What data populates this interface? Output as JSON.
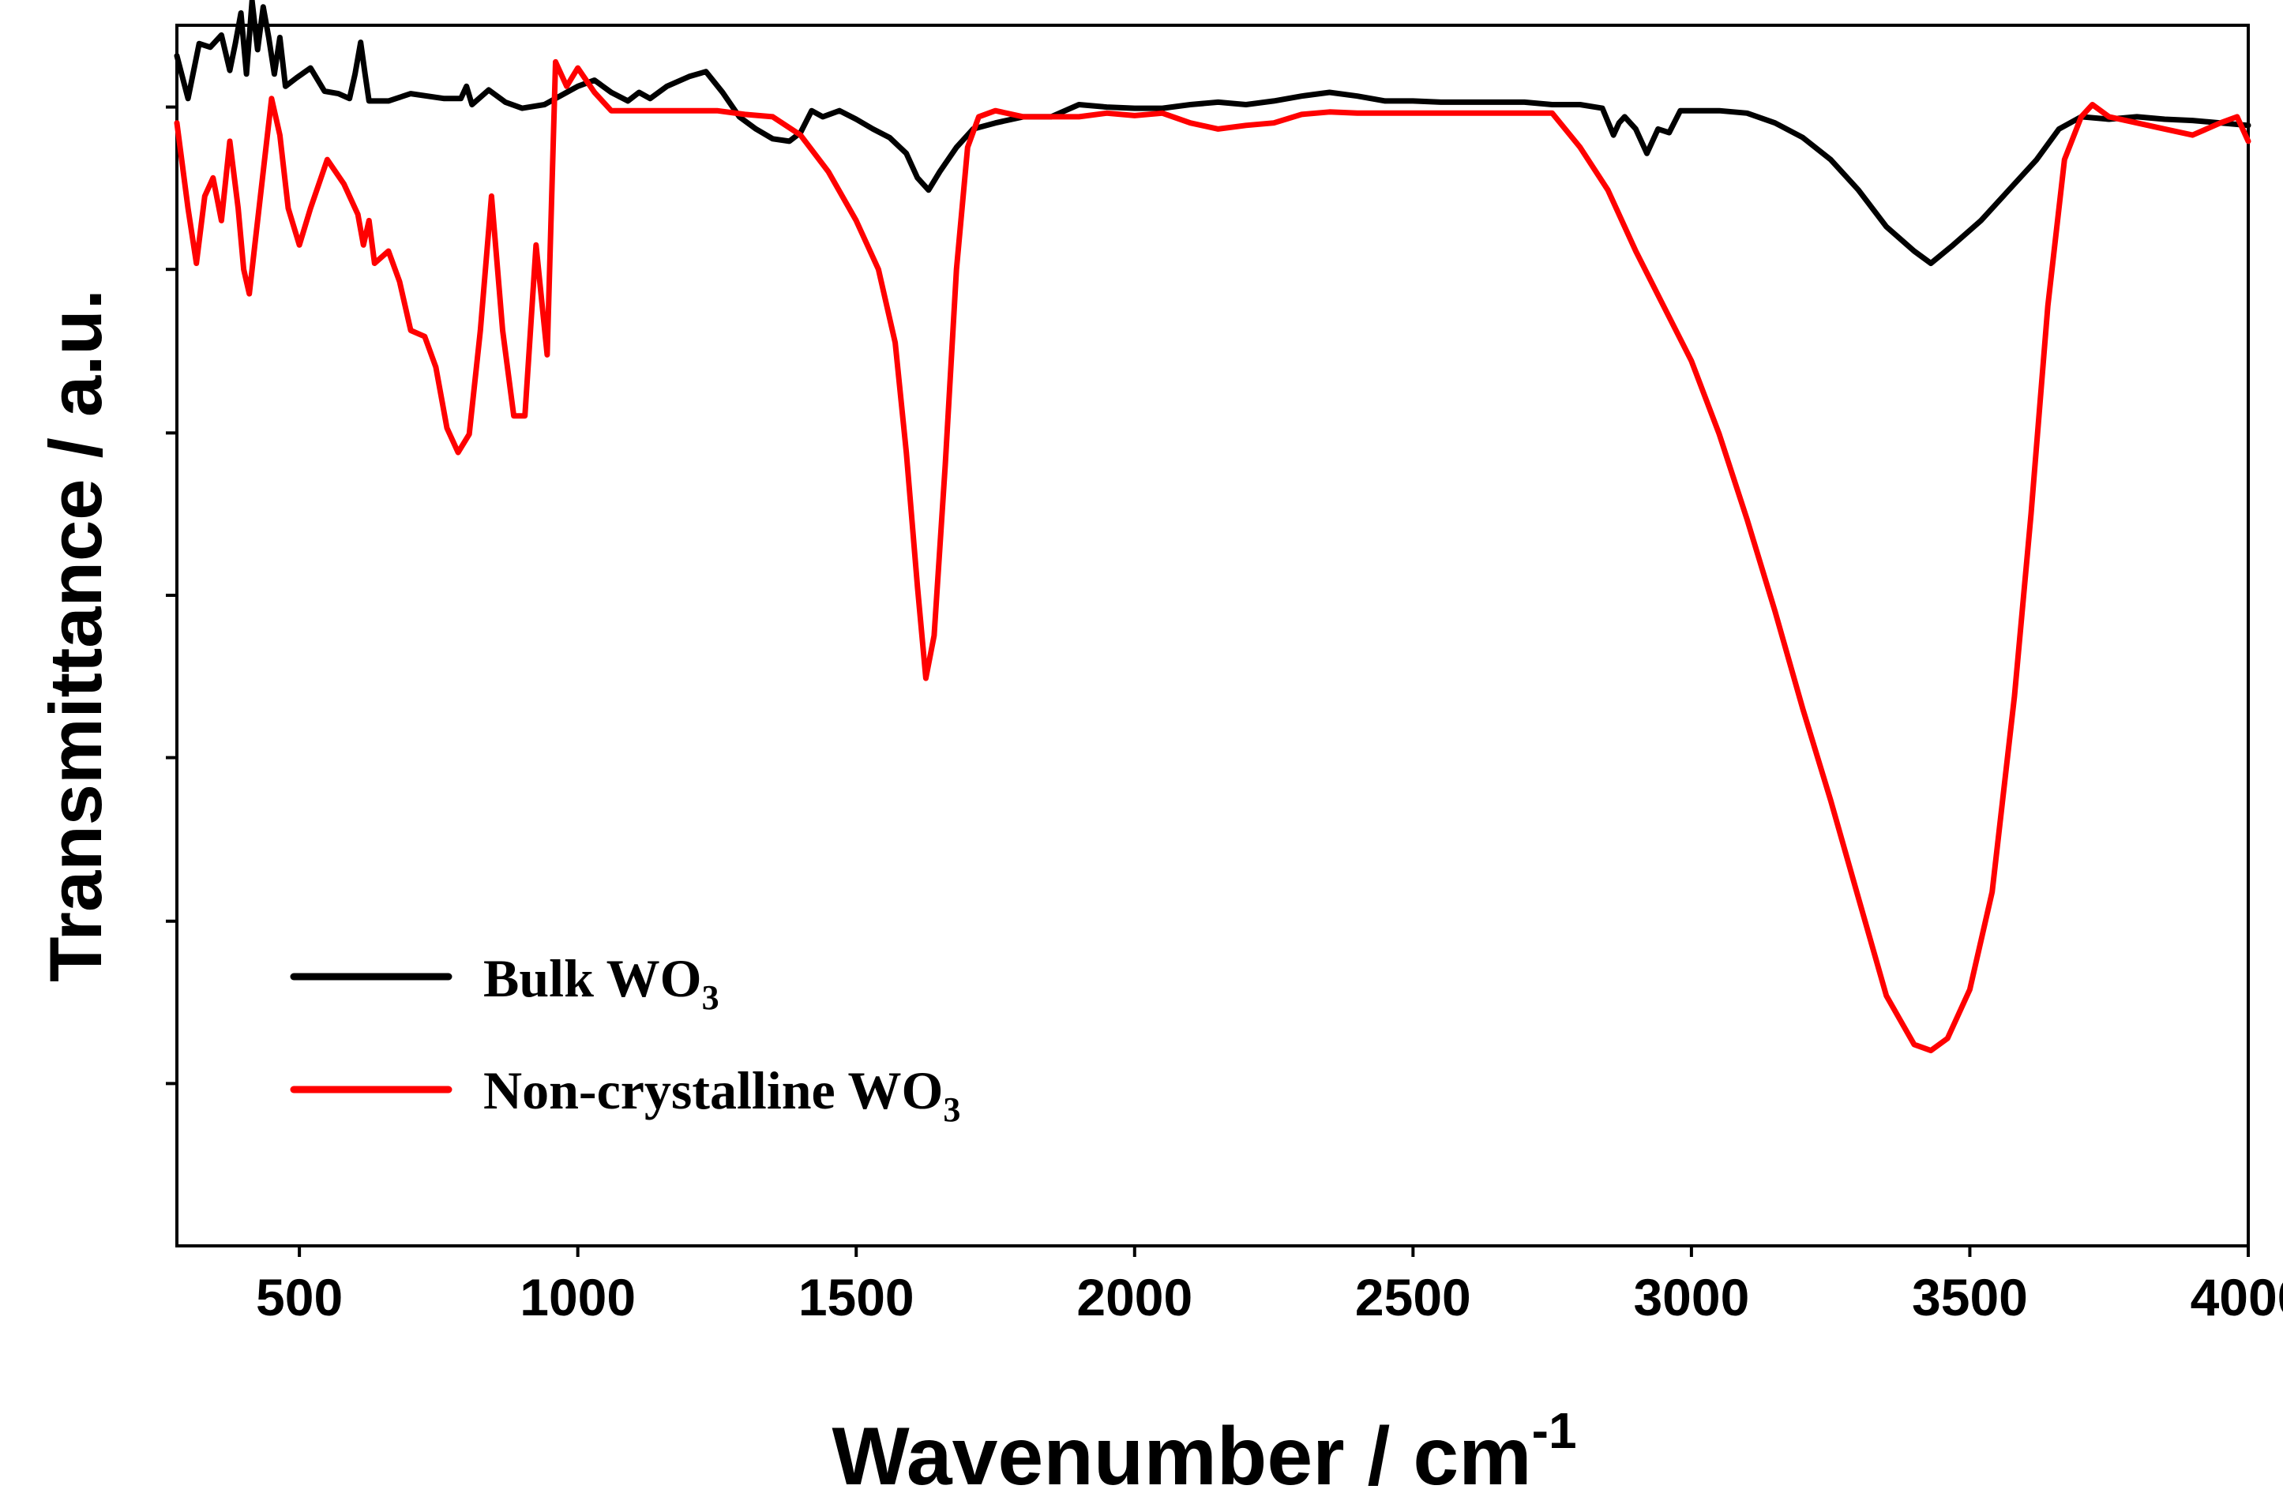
{
  "chart_data": {
    "type": "line",
    "title": "",
    "xlabel": "Wavenumber / cm",
    "xlabel_superscript": "-1",
    "ylabel": "Transmittance / a.u.",
    "xlim": [
      280,
      4000
    ],
    "ylim": [
      0,
      100
    ],
    "x_ticks": [
      500,
      1000,
      1500,
      2000,
      2500,
      3000,
      3500,
      4000
    ],
    "x_tick_labels": [
      "500",
      "1000",
      "1500",
      "2000",
      "2500",
      "3000",
      "3500",
      "4000"
    ],
    "y_ticks": [
      13.3,
      26.6,
      40.0,
      53.3,
      66.6,
      80.0,
      93.3
    ],
    "y_tick_labels_shown": false,
    "grid": false,
    "legend_position": "bottom-left",
    "series": [
      {
        "name": "Bulk WO3",
        "legend_label": "Bulk WO",
        "legend_subscript": "3",
        "color": "#000000",
        "points": [
          [
            280,
            97.5
          ],
          [
            300,
            94.0
          ],
          [
            320,
            98.5
          ],
          [
            340,
            98.2
          ],
          [
            360,
            99.2
          ],
          [
            375,
            96.3
          ],
          [
            385,
            98.5
          ],
          [
            395,
            101.0
          ],
          [
            405,
            96.0
          ],
          [
            415,
            102.0
          ],
          [
            425,
            98.0
          ],
          [
            435,
            101.5
          ],
          [
            445,
            99.0
          ],
          [
            455,
            96.0
          ],
          [
            465,
            99.0
          ],
          [
            475,
            95.0
          ],
          [
            495,
            95.7
          ],
          [
            520,
            96.5
          ],
          [
            545,
            94.6
          ],
          [
            570,
            94.4
          ],
          [
            590,
            94.0
          ],
          [
            600,
            96.0
          ],
          [
            610,
            98.6
          ],
          [
            618,
            96.0
          ],
          [
            625,
            93.8
          ],
          [
            660,
            93.8
          ],
          [
            700,
            94.4
          ],
          [
            760,
            94.0
          ],
          [
            790,
            94.0
          ],
          [
            800,
            95.0
          ],
          [
            810,
            93.5
          ],
          [
            840,
            94.7
          ],
          [
            870,
            93.7
          ],
          [
            900,
            93.2
          ],
          [
            940,
            93.5
          ],
          [
            980,
            94.5
          ],
          [
            1000,
            95.0
          ],
          [
            1030,
            95.5
          ],
          [
            1060,
            94.5
          ],
          [
            1090,
            93.8
          ],
          [
            1110,
            94.5
          ],
          [
            1130,
            94.0
          ],
          [
            1160,
            95.0
          ],
          [
            1200,
            95.8
          ],
          [
            1230,
            96.2
          ],
          [
            1260,
            94.5
          ],
          [
            1290,
            92.5
          ],
          [
            1320,
            91.5
          ],
          [
            1350,
            90.7
          ],
          [
            1380,
            90.5
          ],
          [
            1400,
            91.2
          ],
          [
            1420,
            93.0
          ],
          [
            1440,
            92.5
          ],
          [
            1470,
            93.0
          ],
          [
            1500,
            92.3
          ],
          [
            1530,
            91.5
          ],
          [
            1560,
            90.8
          ],
          [
            1590,
            89.5
          ],
          [
            1610,
            87.5
          ],
          [
            1630,
            86.5
          ],
          [
            1650,
            88.0
          ],
          [
            1680,
            90.0
          ],
          [
            1710,
            91.5
          ],
          [
            1750,
            92.0
          ],
          [
            1800,
            92.5
          ],
          [
            1850,
            92.5
          ],
          [
            1900,
            93.5
          ],
          [
            1950,
            93.3
          ],
          [
            2000,
            93.2
          ],
          [
            2050,
            93.2
          ],
          [
            2100,
            93.5
          ],
          [
            2150,
            93.7
          ],
          [
            2200,
            93.5
          ],
          [
            2250,
            93.8
          ],
          [
            2300,
            94.2
          ],
          [
            2350,
            94.5
          ],
          [
            2400,
            94.2
          ],
          [
            2450,
            93.8
          ],
          [
            2500,
            93.8
          ],
          [
            2550,
            93.7
          ],
          [
            2600,
            93.7
          ],
          [
            2650,
            93.7
          ],
          [
            2700,
            93.7
          ],
          [
            2750,
            93.5
          ],
          [
            2800,
            93.5
          ],
          [
            2840,
            93.2
          ],
          [
            2860,
            91.0
          ],
          [
            2870,
            92.0
          ],
          [
            2880,
            92.5
          ],
          [
            2900,
            91.5
          ],
          [
            2920,
            89.5
          ],
          [
            2940,
            91.5
          ],
          [
            2960,
            91.2
          ],
          [
            2980,
            93.0
          ],
          [
            3050,
            93.0
          ],
          [
            3100,
            92.8
          ],
          [
            3150,
            92.0
          ],
          [
            3200,
            90.8
          ],
          [
            3250,
            89.0
          ],
          [
            3300,
            86.5
          ],
          [
            3350,
            83.5
          ],
          [
            3400,
            81.5
          ],
          [
            3430,
            80.5
          ],
          [
            3470,
            82.0
          ],
          [
            3520,
            84.0
          ],
          [
            3570,
            86.5
          ],
          [
            3620,
            89.0
          ],
          [
            3660,
            91.5
          ],
          [
            3700,
            92.5
          ],
          [
            3750,
            92.3
          ],
          [
            3800,
            92.5
          ],
          [
            3850,
            92.3
          ],
          [
            3900,
            92.2
          ],
          [
            3950,
            92.0
          ],
          [
            4000,
            91.8
          ]
        ]
      },
      {
        "name": "Non-crystalline WO3",
        "legend_label": "Non-crystalline WO",
        "legend_subscript": "3",
        "color": "#ff0000",
        "points": [
          [
            280,
            92.0
          ],
          [
            300,
            85.0
          ],
          [
            315,
            80.5
          ],
          [
            330,
            86.0
          ],
          [
            345,
            87.5
          ],
          [
            360,
            84.0
          ],
          [
            375,
            90.5
          ],
          [
            390,
            85.0
          ],
          [
            400,
            80.0
          ],
          [
            410,
            78.0
          ],
          [
            420,
            82.0
          ],
          [
            435,
            88.0
          ],
          [
            450,
            94.0
          ],
          [
            465,
            91.0
          ],
          [
            480,
            85.0
          ],
          [
            500,
            82.0
          ],
          [
            520,
            85.0
          ],
          [
            550,
            89.0
          ],
          [
            580,
            87.0
          ],
          [
            605,
            84.5
          ],
          [
            615,
            82.0
          ],
          [
            625,
            84.0
          ],
          [
            635,
            80.5
          ],
          [
            660,
            81.5
          ],
          [
            680,
            79.0
          ],
          [
            700,
            75.0
          ],
          [
            725,
            74.5
          ],
          [
            745,
            72.0
          ],
          [
            765,
            67.0
          ],
          [
            785,
            65.0
          ],
          [
            805,
            66.5
          ],
          [
            825,
            75.0
          ],
          [
            845,
            86.0
          ],
          [
            865,
            75.0
          ],
          [
            885,
            68.0
          ],
          [
            905,
            68.0
          ],
          [
            925,
            82.0
          ],
          [
            945,
            73.0
          ],
          [
            960,
            97.0
          ],
          [
            980,
            95.0
          ],
          [
            1000,
            96.5
          ],
          [
            1030,
            94.5
          ],
          [
            1060,
            93.0
          ],
          [
            1100,
            93.0
          ],
          [
            1150,
            93.0
          ],
          [
            1200,
            93.0
          ],
          [
            1250,
            93.0
          ],
          [
            1300,
            92.7
          ],
          [
            1350,
            92.5
          ],
          [
            1400,
            91.0
          ],
          [
            1450,
            88.0
          ],
          [
            1500,
            84.0
          ],
          [
            1540,
            80.0
          ],
          [
            1570,
            74.0
          ],
          [
            1590,
            65.0
          ],
          [
            1610,
            54.0
          ],
          [
            1625,
            46.5
          ],
          [
            1640,
            50.0
          ],
          [
            1660,
            64.0
          ],
          [
            1680,
            80.0
          ],
          [
            1700,
            90.0
          ],
          [
            1720,
            92.5
          ],
          [
            1750,
            93.0
          ],
          [
            1800,
            92.5
          ],
          [
            1850,
            92.5
          ],
          [
            1900,
            92.5
          ],
          [
            1950,
            92.8
          ],
          [
            2000,
            92.6
          ],
          [
            2050,
            92.8
          ],
          [
            2100,
            92.0
          ],
          [
            2150,
            91.5
          ],
          [
            2200,
            91.8
          ],
          [
            2250,
            92.0
          ],
          [
            2300,
            92.7
          ],
          [
            2350,
            92.9
          ],
          [
            2400,
            92.8
          ],
          [
            2450,
            92.8
          ],
          [
            2500,
            92.8
          ],
          [
            2550,
            92.8
          ],
          [
            2600,
            92.8
          ],
          [
            2650,
            92.8
          ],
          [
            2700,
            92.8
          ],
          [
            2750,
            92.8
          ],
          [
            2800,
            90.0
          ],
          [
            2850,
            86.5
          ],
          [
            2900,
            81.5
          ],
          [
            2950,
            77.0
          ],
          [
            3000,
            72.5
          ],
          [
            3050,
            66.5
          ],
          [
            3100,
            59.5
          ],
          [
            3150,
            52.0
          ],
          [
            3200,
            44.0
          ],
          [
            3250,
            36.5
          ],
          [
            3300,
            28.5
          ],
          [
            3350,
            20.5
          ],
          [
            3400,
            16.5
          ],
          [
            3430,
            16.0
          ],
          [
            3460,
            17.0
          ],
          [
            3500,
            21.0
          ],
          [
            3540,
            29.0
          ],
          [
            3580,
            45.0
          ],
          [
            3610,
            60.0
          ],
          [
            3640,
            77.0
          ],
          [
            3670,
            89.0
          ],
          [
            3700,
            92.5
          ],
          [
            3720,
            93.5
          ],
          [
            3750,
            92.5
          ],
          [
            3800,
            92.0
          ],
          [
            3850,
            91.5
          ],
          [
            3900,
            91.0
          ],
          [
            3950,
            92.0
          ],
          [
            3980,
            92.5
          ],
          [
            4000,
            90.5
          ]
        ]
      }
    ]
  }
}
